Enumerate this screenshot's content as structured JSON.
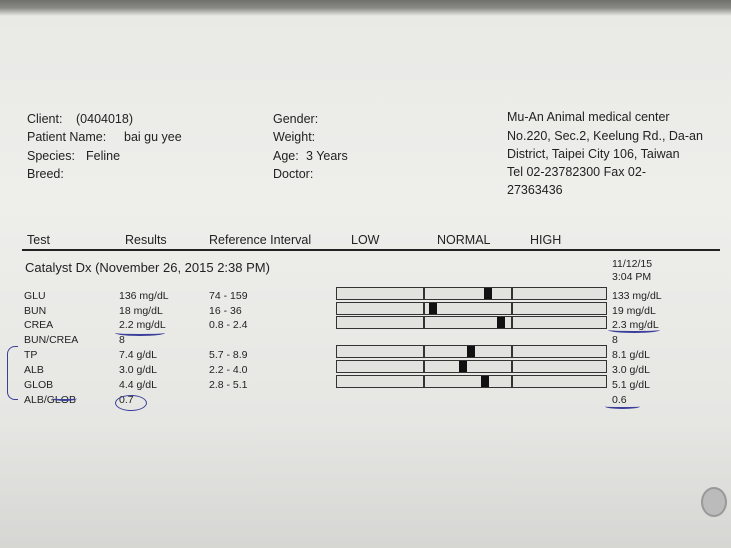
{
  "patient": {
    "client_label": "Client:",
    "client": "(0404018)",
    "name_label": "Patient Name:",
    "name": "bai gu yee",
    "species_label": "Species:",
    "species": "Feline",
    "breed_label": "Breed:",
    "gender_label": "Gender:",
    "weight_label": "Weight:",
    "age_label": "Age:",
    "age": "3 Years",
    "doctor_label": "Doctor:"
  },
  "clinic": {
    "name": "Mu-An Animal medical center",
    "address1": "No.220, Sec.2, Keelung Rd., Da-an",
    "address2": "District, Taipei City 106, Taiwan",
    "phone": "Tel 02-23782300  Fax 02-",
    "fax_cont": "27363436"
  },
  "table": {
    "headers": {
      "test": "Test",
      "results": "Results",
      "reference": "Reference Interval",
      "low": "LOW",
      "normal": "NORMAL",
      "high": "HIGH"
    },
    "section": "Catalyst Dx (November 26, 2015 2:38 PM)",
    "prev_date": "11/12/15",
    "prev_time": "3:04 PM",
    "rows": [
      {
        "test": "GLU",
        "result": "136 mg/dL",
        "value": 136,
        "ref": "74 - 159",
        "lo": 74,
        "hi": 159,
        "prev": "133 mg/dL"
      },
      {
        "test": "BUN",
        "result": "18 mg/dL",
        "value": 18,
        "ref": "16 - 36",
        "lo": 16,
        "hi": 36,
        "prev": "19 mg/dL"
      },
      {
        "test": "CREA",
        "result": "2.2 mg/dL",
        "value": 2.2,
        "ref": "0.8 - 2.4",
        "lo": 0.8,
        "hi": 2.4,
        "prev": "2.3 mg/dL"
      },
      {
        "test": "BUN/CREA",
        "result": "8",
        "ref": "",
        "prev": "8"
      },
      {
        "test": "TP",
        "result": "7.4 g/dL",
        "value": 7.4,
        "ref": "5.7 - 8.9",
        "lo": 5.7,
        "hi": 8.9,
        "prev": "8.1 g/dL"
      },
      {
        "test": "ALB",
        "result": "3.0 g/dL",
        "value": 3.0,
        "ref": "2.2 - 4.0",
        "lo": 2.2,
        "hi": 4.0,
        "prev": "3.0 g/dL"
      },
      {
        "test": "GLOB",
        "result": "4.4 g/dL",
        "value": 4.4,
        "ref": "2.8 - 5.1",
        "lo": 2.8,
        "hi": 5.1,
        "prev": "5.1 g/dL"
      },
      {
        "test": "ALB/GLOB",
        "result": "0.7",
        "ref": "",
        "prev": "0.6"
      }
    ]
  },
  "colors": {
    "ink": "#3b3f9a",
    "marker": "#111111"
  }
}
